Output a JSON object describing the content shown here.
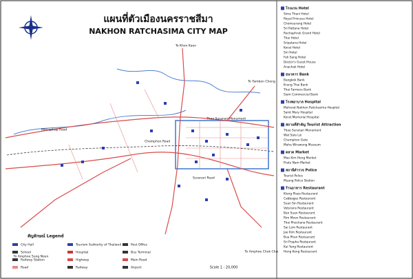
{
  "title": {
    "thai": "แผนที่ตัวเมืองนครราชสีมา",
    "english": "NAKHON RATCHASIMA CITY MAP"
  },
  "map_labels": [
    "To Khon Kaen",
    "To Tambon Chong",
    "To Amphoe Sung Noen",
    "To Amphoe Chok Chai",
    "Mittraphap Road",
    "Suranari Road",
    "Chomphon Road",
    "Thao Suranari Monument"
  ],
  "scale": "Scale 1 : 20,000",
  "legend": {
    "title": "สัญลักษณ์ Legend",
    "items": [
      "City Hall",
      "Tourism Authority of Thailand",
      "Post Office",
      "School",
      "Hospital",
      "Bus Terminal",
      "Railway Station",
      "Highway",
      "Main Road",
      "Road",
      "Railway",
      "Airport"
    ]
  },
  "index": {
    "sections": [
      {
        "title": "โรงแรม Hotel",
        "entries": [
          "Sima Thani Hotel",
          "Royal Princess Hotel",
          "Chomsurang Hotel",
          "Sri Pattana Hotel",
          "Rachaphruk Grand Hotel",
          "Thai Hotel",
          "Sripatana Hotel",
          "Korat Hotel",
          "Siri Hotel",
          "Fah Sang Hotel",
          "Doctor's Guest House",
          "Anachak Hotel"
        ]
      },
      {
        "title": "ธนาคาร Bank",
        "entries": [
          "Bangkok Bank",
          "Krung Thai Bank",
          "Thai Farmers Bank",
          "Siam Commercial Bank"
        ]
      },
      {
        "title": "โรงพยาบาล Hospital",
        "entries": [
          "Maharat Nakhon Ratchasima Hospital",
          "Saint Mary Hospital",
          "Korat Memorial Hospital"
        ]
      },
      {
        "title": "สถานที่สำคัญ Tourist Attraction",
        "entries": [
          "Thao Suranari Monument",
          "Wat Sala Loi",
          "Chumphon Gate",
          "Maha Wirawong Museum"
        ]
      },
      {
        "title": "ตลาด Market",
        "entries": [
          "Mae Kim Heng Market",
          "Pratu Nam Market"
        ]
      },
      {
        "title": "สถานีตำรวจ Police",
        "entries": [
          "Tourist Police",
          "Muang Police Station"
        ]
      },
      {
        "title": "ร้านอาหาร Restaurant",
        "entries": [
          "Klang Plaza Restaurant",
          "Cabbages Restaurant",
          "Suan Sin Restaurant",
          "Veterans Restaurant",
          "Ban Suan Restaurant",
          "Rim Moon Restaurant",
          "Thai Phochana Restaurant",
          "Sai Lom Restaurant",
          "Jae Kim Restaurant",
          "Bua Phan Restaurant",
          "Sri Prapha Restaurant",
          "Kai Yang Restaurant",
          "Hong Kong Restaurant"
        ]
      }
    ]
  }
}
